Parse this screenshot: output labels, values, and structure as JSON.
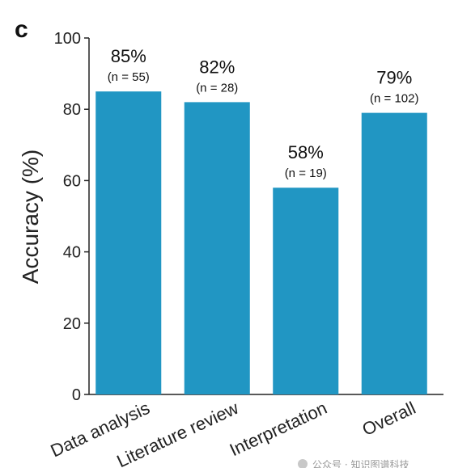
{
  "panel_label": "c",
  "watermark": "公众号 · 知识图谱科技",
  "chart_data": {
    "type": "bar",
    "title": "",
    "xlabel": "",
    "ylabel": "Accuracy (%)",
    "ylim": [
      0,
      100
    ],
    "yticks": [
      "0",
      "20",
      "40",
      "60",
      "80",
      "100"
    ],
    "categories": [
      "Data analysis",
      "Literature review",
      "Interpretation",
      "Overall"
    ],
    "values": [
      85,
      82,
      58,
      79
    ],
    "value_labels": [
      "85%",
      "82%",
      "58%",
      "79%"
    ],
    "n_labels": [
      "(n = 55)",
      "(n = 28)",
      "(n = 19)",
      "(n = 102)"
    ],
    "bar_color": "#2196c3",
    "grid": false
  }
}
